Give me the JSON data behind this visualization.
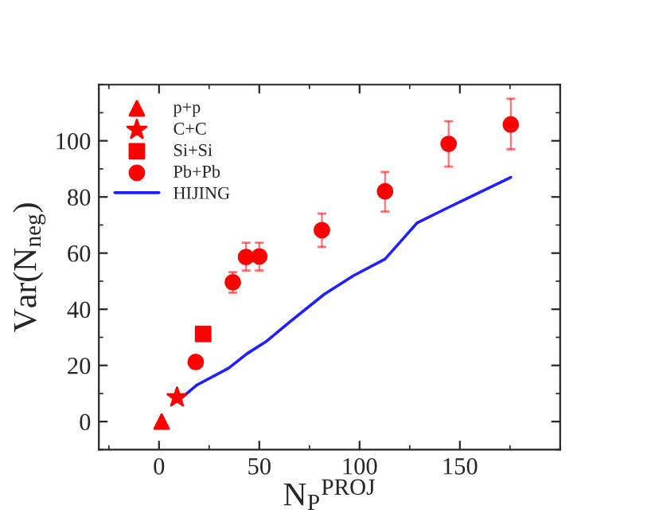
{
  "chart_data": {
    "type": "scatter",
    "xlabel": "N$_{P}$$^{PROJ}$",
    "ylabel": "Var(N$_{neg}$)",
    "xlim": [
      -30,
      200
    ],
    "xticks": [
      0,
      50,
      100,
      150
    ],
    "ylim": [
      -10,
      120
    ],
    "yticks": [
      0,
      20,
      40,
      60,
      80,
      100
    ],
    "grid": false,
    "legend": "top left",
    "series": [
      {
        "name": "p+p",
        "marker": "triangle",
        "color": "#ff0000",
        "x": [
          1.3
        ],
        "values": [
          0
        ]
      },
      {
        "name": "C+C",
        "marker": "star",
        "color": "#ff0000",
        "x": [
          9
        ],
        "values": [
          8.6
        ]
      },
      {
        "name": "Si+Si",
        "marker": "square",
        "color": "#ff0000",
        "x": [
          22
        ],
        "values": [
          31.2
        ]
      },
      {
        "name": "Pb+Pb",
        "marker": "circle",
        "color": "#ff0000",
        "x": [
          18.3,
          36.8,
          43.4,
          50,
          81.2,
          112.7,
          144.4,
          175.4
        ],
        "values": [
          21.2,
          49.6,
          58.6,
          58.8,
          68.2,
          82,
          98.9,
          105.8
        ],
        "errors": [
          null,
          [
            45.9,
            53.2
          ],
          [
            53.8,
            63.7
          ],
          [
            53.8,
            63.7
          ],
          [
            62.2,
            74.1
          ],
          [
            74.8,
            88.9
          ],
          [
            90.8,
            107
          ],
          [
            97,
            115
          ]
        ]
      },
      {
        "name": "HIJING",
        "type": "line",
        "marker": "none",
        "line_style": "solid",
        "color": "#1f1fff",
        "x": [
          11.4,
          18.8,
          34.7,
          43.9,
          53.2,
          65.9,
          82.3,
          96.8,
          112.7,
          128.6,
          144.4,
          175.4
        ],
        "values": [
          8.5,
          13,
          19,
          24.2,
          28.4,
          35.9,
          45.3,
          51.9,
          57.9,
          70.7,
          76.3,
          87
        ]
      }
    ]
  }
}
